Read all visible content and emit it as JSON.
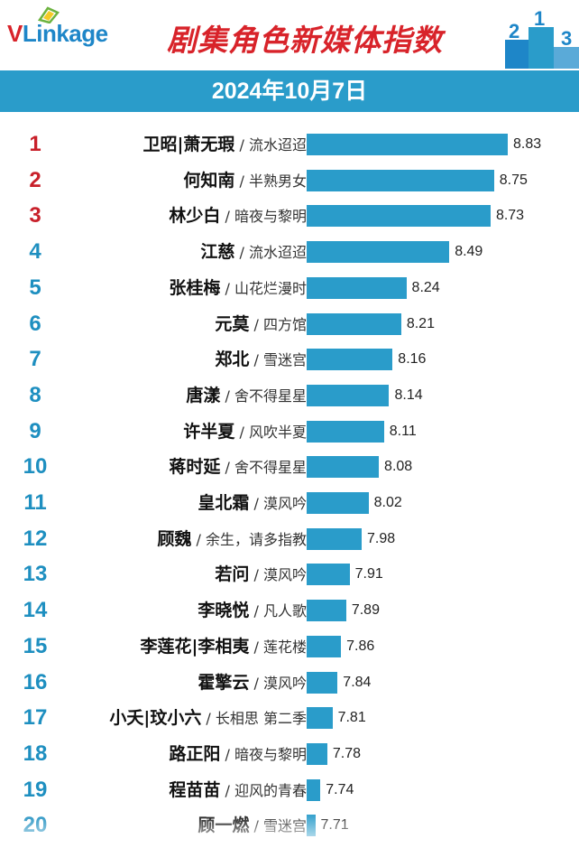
{
  "header": {
    "logo_text_v": "V",
    "logo_text_rest": "Linkage",
    "title": "剧集角色新媒体指数",
    "podium_numbers": [
      "2",
      "1",
      "3"
    ],
    "date": "2024年10月7日"
  },
  "colors": {
    "bar": "#2a9cca",
    "top_rank": "#c8202a",
    "rank": "#1e8fc0",
    "title": "#d8232a"
  },
  "chart_data": {
    "type": "bar",
    "orientation": "horizontal",
    "title": "剧集角色新媒体指数",
    "subtitle": "2024年10月7日",
    "rows": [
      {
        "rank": "1",
        "name": "卫昭|萧无瑕",
        "drama": "流水迢迢",
        "value": 8.83
      },
      {
        "rank": "2",
        "name": "何知南",
        "drama": "半熟男女",
        "value": 8.75
      },
      {
        "rank": "3",
        "name": "林少白",
        "drama": "暗夜与黎明",
        "value": 8.73
      },
      {
        "rank": "4",
        "name": "江慈",
        "drama": "流水迢迢",
        "value": 8.49
      },
      {
        "rank": "5",
        "name": "张桂梅",
        "drama": "山花烂漫时",
        "value": 8.24
      },
      {
        "rank": "6",
        "name": "元莫",
        "drama": "四方馆",
        "value": 8.21
      },
      {
        "rank": "7",
        "name": "郑北",
        "drama": "雪迷宫",
        "value": 8.16
      },
      {
        "rank": "8",
        "name": "唐漾",
        "drama": "舍不得星星",
        "value": 8.14
      },
      {
        "rank": "9",
        "name": "许半夏",
        "drama": "风吹半夏",
        "value": 8.11
      },
      {
        "rank": "10",
        "name": "蒋时延",
        "drama": "舍不得星星",
        "value": 8.08
      },
      {
        "rank": "11",
        "name": "皇北霜",
        "drama": "漠风吟",
        "value": 8.02
      },
      {
        "rank": "12",
        "name": "顾魏",
        "drama": "余生，请多指教",
        "value": 7.98
      },
      {
        "rank": "13",
        "name": "若问",
        "drama": "漠风吟",
        "value": 7.91
      },
      {
        "rank": "14",
        "name": "李晓悦",
        "drama": "凡人歌",
        "value": 7.89
      },
      {
        "rank": "15",
        "name": "李莲花|李相夷",
        "drama": "莲花楼",
        "value": 7.86
      },
      {
        "rank": "16",
        "name": "霍擎云",
        "drama": "漠风吟",
        "value": 7.84
      },
      {
        "rank": "17",
        "name": "小夭|玟小六",
        "drama": "长相思 第二季",
        "value": 7.81
      },
      {
        "rank": "18",
        "name": "路正阳",
        "drama": "暗夜与黎明",
        "value": 7.78
      },
      {
        "rank": "19",
        "name": "程苗苗",
        "drama": "迎风的青春",
        "value": 7.74
      },
      {
        "rank": "20",
        "name": "顾一燃",
        "drama": "雪迷宫",
        "value": 7.71
      }
    ],
    "xlim": [
      7.66,
      8.83
    ]
  }
}
